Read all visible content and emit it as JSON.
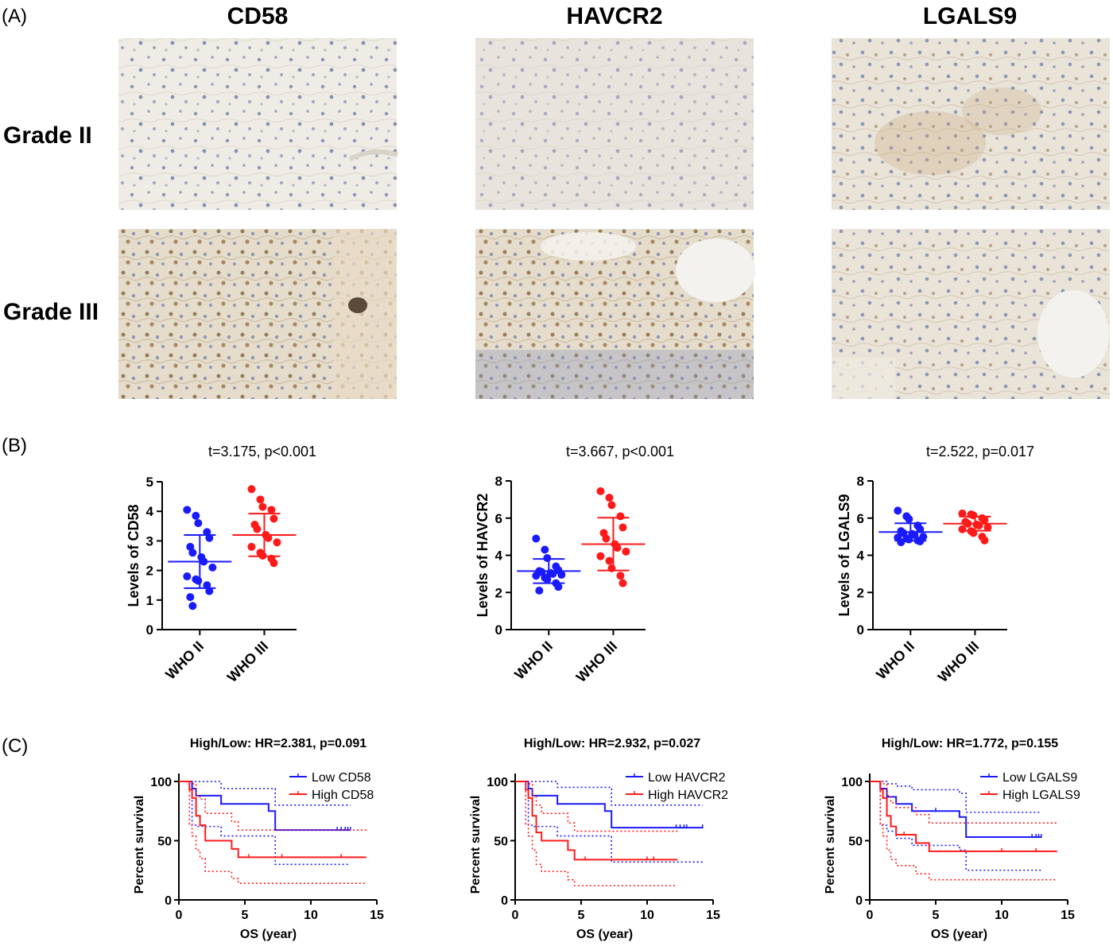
{
  "panel_labels": [
    "(A)",
    "(B)",
    "(C)"
  ],
  "histology": {
    "columns": [
      "CD58",
      "HAVCR2",
      "LGALS9"
    ],
    "rows": [
      "Grade II",
      "Grade III"
    ]
  },
  "colors": {
    "low": "#1a1aff",
    "high": "#ff1a1a",
    "axis": "#000000"
  },
  "chart_data": [
    {
      "type": "scatter",
      "title": "t=3.175, p<0.001",
      "xlabel": "",
      "ylabel": "Levels of CD58",
      "categories": [
        "WHO II",
        "WHO III"
      ],
      "ylim": [
        0,
        5
      ],
      "yticks": [
        0,
        1,
        2,
        3,
        4,
        5
      ],
      "series": [
        {
          "values": [
            4.05,
            3.85,
            3.6,
            3.3,
            3.1,
            2.8,
            2.6,
            2.45,
            2.3,
            2.1,
            1.8,
            1.7,
            1.65,
            1.5,
            1.3,
            1.1,
            0.8
          ],
          "mean": 2.3,
          "sd": 0.9
        },
        {
          "values": [
            4.75,
            4.4,
            4.15,
            4.05,
            3.75,
            3.55,
            3.4,
            3.2,
            3.1,
            2.95,
            2.8,
            2.6,
            2.5,
            2.4,
            2.25
          ],
          "mean": 3.2,
          "sd": 0.72
        }
      ]
    },
    {
      "type": "scatter",
      "title": "t=3.667, p<0.001",
      "xlabel": "",
      "ylabel": "Levels of HAVCR2",
      "categories": [
        "WHO II",
        "WHO III"
      ],
      "ylim": [
        0,
        8
      ],
      "yticks": [
        0,
        2,
        4,
        6,
        8
      ],
      "series": [
        {
          "values": [
            4.9,
            4.3,
            3.85,
            3.4,
            3.2,
            3.15,
            3.1,
            3.05,
            3.0,
            2.95,
            2.9,
            2.8,
            2.7,
            2.5,
            2.3,
            2.1
          ],
          "mean": 3.15,
          "sd": 0.65
        },
        {
          "values": [
            7.45,
            7.1,
            6.7,
            6.1,
            5.5,
            5.2,
            4.9,
            4.6,
            4.4,
            4.2,
            3.95,
            3.7,
            3.3,
            2.9,
            2.5
          ],
          "mean": 4.6,
          "sd": 1.42
        }
      ]
    },
    {
      "type": "scatter",
      "title": "t=2.522, p=0.017",
      "xlabel": "",
      "ylabel": "Levels of LGALS9",
      "categories": [
        "WHO II",
        "WHO III"
      ],
      "ylim": [
        0,
        8
      ],
      "yticks": [
        0,
        2,
        4,
        6,
        8
      ],
      "series": [
        {
          "values": [
            6.4,
            6.1,
            5.95,
            5.6,
            5.4,
            5.3,
            5.2,
            5.15,
            5.1,
            5.0,
            4.95,
            4.9,
            4.85,
            4.8,
            4.75,
            4.7
          ],
          "mean": 5.25,
          "sd": 0.47
        },
        {
          "values": [
            6.25,
            6.2,
            6.15,
            6.0,
            5.9,
            5.8,
            5.7,
            5.65,
            5.6,
            5.5,
            5.4,
            5.3,
            5.2,
            5.0,
            4.8
          ],
          "mean": 5.7,
          "sd": 0.38
        }
      ]
    },
    {
      "type": "line",
      "title": "High/Low: HR=2.381,  p=0.091",
      "xlabel": "OS (year)",
      "ylabel": "Percent survival",
      "xlim": [
        0,
        15
      ],
      "ylim": [
        0,
        100
      ],
      "xticks": [
        0,
        5,
        10,
        15
      ],
      "yticks": [
        0,
        50,
        100
      ],
      "legend": "top-right",
      "series": [
        {
          "name": "Low CD58",
          "steps": [
            [
              0,
              100
            ],
            [
              1.0,
              94
            ],
            [
              1.3,
              88
            ],
            [
              3.2,
              81
            ],
            [
              6.8,
              75
            ],
            [
              7.3,
              59
            ],
            [
              13.0,
              59
            ]
          ],
          "censor": [
            [
              3.2,
              81
            ],
            [
              12.0,
              59
            ],
            [
              12.3,
              59
            ],
            [
              12.6,
              59
            ],
            [
              12.8,
              59
            ],
            [
              13.0,
              59
            ]
          ],
          "ci_upper": [
            [
              0,
              100
            ],
            [
              1.0,
              100
            ],
            [
              1.3,
              100
            ],
            [
              3.2,
              94
            ],
            [
              6.8,
              94
            ],
            [
              7.3,
              80
            ],
            [
              13.0,
              80
            ]
          ],
          "ci_lower": [
            [
              0,
              100
            ],
            [
              1.0,
              63
            ],
            [
              1.3,
              62
            ],
            [
              3.2,
              54
            ],
            [
              6.8,
              54
            ],
            [
              7.3,
              30
            ],
            [
              13.0,
              30
            ]
          ]
        },
        {
          "name": "High CD58",
          "steps": [
            [
              0,
              100
            ],
            [
              0.8,
              93
            ],
            [
              1.0,
              86
            ],
            [
              1.3,
              71
            ],
            [
              1.6,
              63
            ],
            [
              2.0,
              50
            ],
            [
              4.0,
              43
            ],
            [
              4.5,
              36
            ],
            [
              14.2,
              36
            ]
          ],
          "censor": [
            [
              5.3,
              36
            ],
            [
              7.8,
              36
            ],
            [
              12.3,
              36
            ]
          ],
          "ci_upper": [
            [
              0,
              100
            ],
            [
              0.8,
              100
            ],
            [
              1.0,
              98
            ],
            [
              1.3,
              88
            ],
            [
              1.6,
              85
            ],
            [
              2.0,
              73
            ],
            [
              4.0,
              66
            ],
            [
              4.5,
              59
            ],
            [
              14.2,
              59
            ]
          ],
          "ci_lower": [
            [
              0,
              100
            ],
            [
              0.8,
              64
            ],
            [
              1.0,
              54
            ],
            [
              1.3,
              42
            ],
            [
              1.6,
              35
            ],
            [
              2.0,
              24
            ],
            [
              4.0,
              18
            ],
            [
              4.5,
              14
            ],
            [
              14.2,
              14
            ]
          ]
        }
      ]
    },
    {
      "type": "line",
      "title": "High/Low: HR=2.932,  p=0.027",
      "xlabel": "OS (year)",
      "ylabel": "Percent survival",
      "xlim": [
        0,
        15
      ],
      "ylim": [
        0,
        100
      ],
      "xticks": [
        0,
        5,
        10,
        15
      ],
      "yticks": [
        0,
        50,
        100
      ],
      "legend": "top-right",
      "series": [
        {
          "name": "Low HAVCR2",
          "steps": [
            [
              0,
              100
            ],
            [
              1.0,
              94
            ],
            [
              1.3,
              88
            ],
            [
              3.2,
              81
            ],
            [
              6.8,
              75
            ],
            [
              7.3,
              61
            ],
            [
              14.2,
              61
            ]
          ],
          "censor": [
            [
              3.2,
              81
            ],
            [
              12.2,
              61
            ],
            [
              12.5,
              61
            ],
            [
              12.8,
              61
            ],
            [
              13.0,
              61
            ],
            [
              14.2,
              61
            ]
          ],
          "ci_upper": [
            [
              0,
              100
            ],
            [
              1.0,
              100
            ],
            [
              1.3,
              100
            ],
            [
              3.2,
              95
            ],
            [
              6.8,
              95
            ],
            [
              7.3,
              80
            ],
            [
              14.2,
              80
            ]
          ],
          "ci_lower": [
            [
              0,
              100
            ],
            [
              1.0,
              63
            ],
            [
              1.3,
              62
            ],
            [
              3.2,
              54
            ],
            [
              6.8,
              54
            ],
            [
              7.3,
              32
            ],
            [
              14.2,
              32
            ]
          ]
        },
        {
          "name": "High HAVCR2",
          "steps": [
            [
              0,
              100
            ],
            [
              0.8,
              93
            ],
            [
              1.0,
              86
            ],
            [
              1.3,
              71
            ],
            [
              1.6,
              57
            ],
            [
              2.0,
              50
            ],
            [
              4.0,
              42
            ],
            [
              4.5,
              34
            ],
            [
              12.3,
              34
            ]
          ],
          "censor": [
            [
              5.3,
              34
            ],
            [
              10.0,
              34
            ],
            [
              10.5,
              34
            ]
          ],
          "ci_upper": [
            [
              0,
              100
            ],
            [
              0.8,
              100
            ],
            [
              1.0,
              98
            ],
            [
              1.3,
              88
            ],
            [
              1.6,
              80
            ],
            [
              2.0,
              73
            ],
            [
              4.0,
              65
            ],
            [
              4.5,
              58
            ],
            [
              12.3,
              58
            ]
          ],
          "ci_lower": [
            [
              0,
              100
            ],
            [
              0.8,
              64
            ],
            [
              1.0,
              54
            ],
            [
              1.3,
              42
            ],
            [
              1.6,
              30
            ],
            [
              2.0,
              24
            ],
            [
              4.0,
              17
            ],
            [
              4.5,
              12
            ],
            [
              12.3,
              12
            ]
          ]
        }
      ]
    },
    {
      "type": "line",
      "title": "High/Low: HR=1.772,  p=0.155",
      "xlabel": "OS (year)",
      "ylabel": "Percent survival",
      "xlim": [
        0,
        15
      ],
      "ylim": [
        0,
        100
      ],
      "xticks": [
        0,
        5,
        10,
        15
      ],
      "yticks": [
        0,
        50,
        100
      ],
      "legend": "top-right",
      "series": [
        {
          "name": "Low LGALS9",
          "steps": [
            [
              0,
              100
            ],
            [
              0.8,
              94
            ],
            [
              1.3,
              87
            ],
            [
              2.0,
              81
            ],
            [
              3.2,
              75
            ],
            [
              6.8,
              70
            ],
            [
              7.3,
              53
            ],
            [
              13.0,
              53
            ]
          ],
          "censor": [
            [
              5.0,
              75
            ],
            [
              12.3,
              53
            ],
            [
              12.6,
              53
            ],
            [
              12.8,
              53
            ],
            [
              13.0,
              53
            ]
          ],
          "ci_upper": [
            [
              0,
              100
            ],
            [
              0.8,
              100
            ],
            [
              1.3,
              98
            ],
            [
              2.0,
              96
            ],
            [
              3.2,
              93
            ],
            [
              6.8,
              90
            ],
            [
              7.3,
              74
            ],
            [
              13.0,
              74
            ]
          ],
          "ci_lower": [
            [
              0,
              100
            ],
            [
              0.8,
              63
            ],
            [
              1.3,
              58
            ],
            [
              2.0,
              52
            ],
            [
              3.2,
              46
            ],
            [
              6.8,
              42
            ],
            [
              7.3,
              25
            ],
            [
              13.0,
              25
            ]
          ]
        },
        {
          "name": "High LGALS9",
          "steps": [
            [
              0,
              100
            ],
            [
              0.8,
              93
            ],
            [
              1.0,
              86
            ],
            [
              1.3,
              71
            ],
            [
              1.6,
              62
            ],
            [
              2.0,
              55
            ],
            [
              3.5,
              48
            ],
            [
              4.5,
              41
            ],
            [
              14.2,
              41
            ]
          ],
          "censor": [
            [
              2.6,
              55
            ],
            [
              10.0,
              41
            ],
            [
              12.6,
              41
            ]
          ],
          "ci_upper": [
            [
              0,
              100
            ],
            [
              0.8,
              100
            ],
            [
              1.0,
              98
            ],
            [
              1.3,
              88
            ],
            [
              1.6,
              82
            ],
            [
              2.0,
              78
            ],
            [
              3.5,
              72
            ],
            [
              4.5,
              65
            ],
            [
              14.2,
              65
            ]
          ],
          "ci_lower": [
            [
              0,
              100
            ],
            [
              0.8,
              64
            ],
            [
              1.0,
              54
            ],
            [
              1.3,
              42
            ],
            [
              1.6,
              34
            ],
            [
              2.0,
              29
            ],
            [
              3.5,
              22
            ],
            [
              4.5,
              17
            ],
            [
              14.2,
              17
            ]
          ]
        }
      ]
    }
  ]
}
